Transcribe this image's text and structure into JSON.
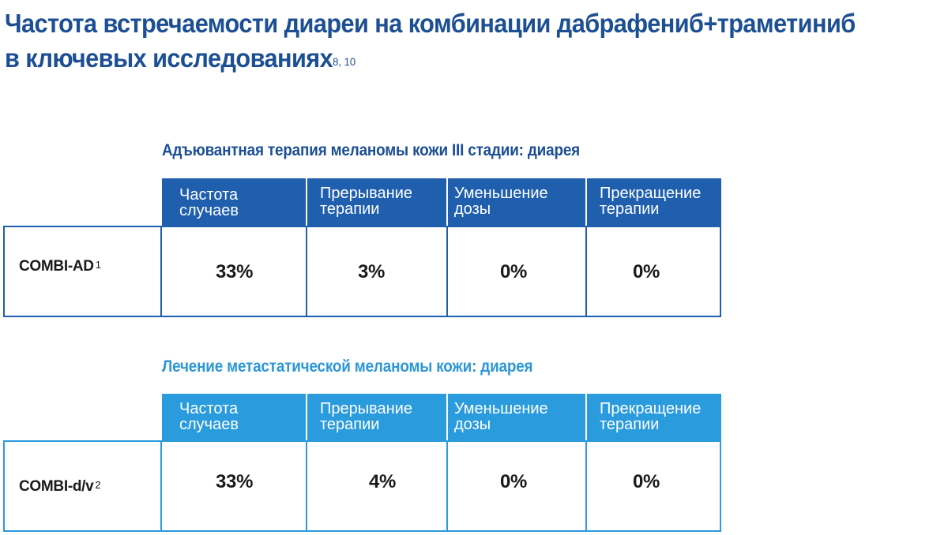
{
  "title": {
    "line1": "Частота встречаемости диареи на комбинации дабрафениб+траметиниб",
    "line2": "в ключевых исследованиях",
    "refs": "8, 10"
  },
  "colors": {
    "title": "#1c4f93",
    "table1_header": "#1f5fae",
    "table2_header": "#2a9bdc",
    "section2_title": "#2d97d6"
  },
  "tables": [
    {
      "section_title": "Адъювантная терапия меланомы кожи III стадии: диарея",
      "headers": [
        "Частота\nслучаев",
        "Прерывание\nтерапии",
        "Уменьшение\nдозы",
        "Прекращение\nтерапии"
      ],
      "row": {
        "study": "COMBI-AD",
        "study_ref": "1",
        "values": [
          "33%",
          "3%",
          "0%",
          "0%"
        ]
      }
    },
    {
      "section_title": "Лечение метастатической меланомы кожи: диарея",
      "headers": [
        "Частота\nслучаев",
        "Прерывание\nтерапии",
        "Уменьшение\nдозы",
        "Прекращение\nтерапии"
      ],
      "row": {
        "study": "COMBI-d/v",
        "study_ref": "2",
        "values": [
          "33%",
          "4%",
          "0%",
          "0%"
        ]
      }
    }
  ]
}
